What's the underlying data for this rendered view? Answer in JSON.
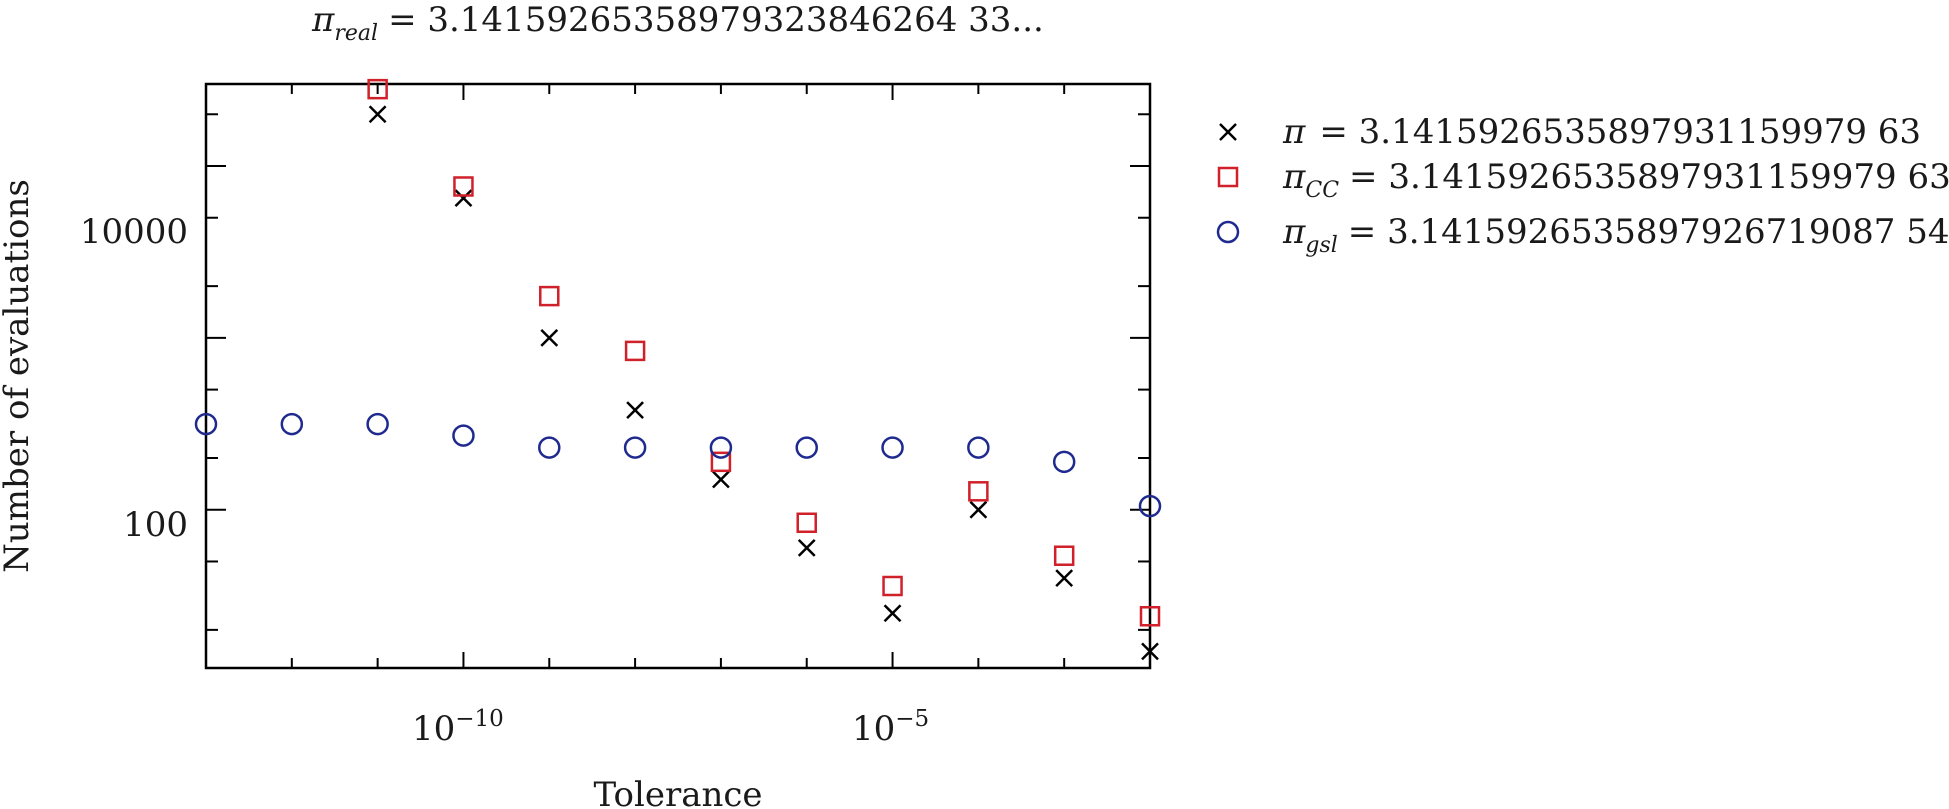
{
  "chart_data": {
    "type": "scatter",
    "title": {
      "symbol": "π",
      "subscript": "real",
      "value_text": "= 3.14159265358979323846264 33..."
    },
    "xlabel": "Tolerance",
    "ylabel": "Number of evaluations",
    "x_scale": "log",
    "y_scale": "log",
    "x_exponent_range": [
      -13,
      -2
    ],
    "ylim": [
      12,
      30000
    ],
    "x_tick_labels": [
      {
        "text": "10",
        "sup": "−10",
        "exp": -10
      },
      {
        "text": "10",
        "sup": "−5",
        "exp": -5
      }
    ],
    "y_tick_labels": [
      {
        "text": "10000",
        "value": 10000
      },
      {
        "text": "100",
        "value": 100
      }
    ],
    "grid": false,
    "legend_position": "outside-right",
    "series": [
      {
        "name": {
          "symbol": "π",
          "subscript": "",
          "value_text": "= 3.1415926535897931159979 63"
        },
        "marker": "x",
        "color": "#000000",
        "x_exp": [
          -11,
          -10,
          -9,
          -8,
          -7,
          -6,
          -5,
          -4,
          -3,
          -2
        ],
        "y": [
          20000,
          6500,
          1000,
          380,
          150,
          60,
          25,
          100,
          40,
          15
        ]
      },
      {
        "name": {
          "symbol": "π",
          "subscript": "CC",
          "value_text": "= 3.1415926535897931159979 63"
        },
        "marker": "square",
        "color": "#d0202a",
        "x_exp": [
          -11,
          -10,
          -9,
          -8,
          -7,
          -6,
          -5,
          -4,
          -3,
          -2
        ],
        "y": [
          28000,
          7600,
          1750,
          840,
          190,
          84,
          36,
          128,
          54,
          24
        ]
      },
      {
        "name": {
          "symbol": "π",
          "subscript": "gsl",
          "value_text": "= 3.1415926535897926719087 54"
        },
        "marker": "circle",
        "color": "#1f2a8f",
        "x_exp": [
          -13,
          -12,
          -11,
          -10,
          -9,
          -8,
          -7,
          -6,
          -5,
          -4,
          -3,
          -2
        ],
        "y": [
          315,
          315,
          315,
          270,
          230,
          230,
          230,
          230,
          230,
          230,
          190,
          105
        ]
      }
    ]
  }
}
